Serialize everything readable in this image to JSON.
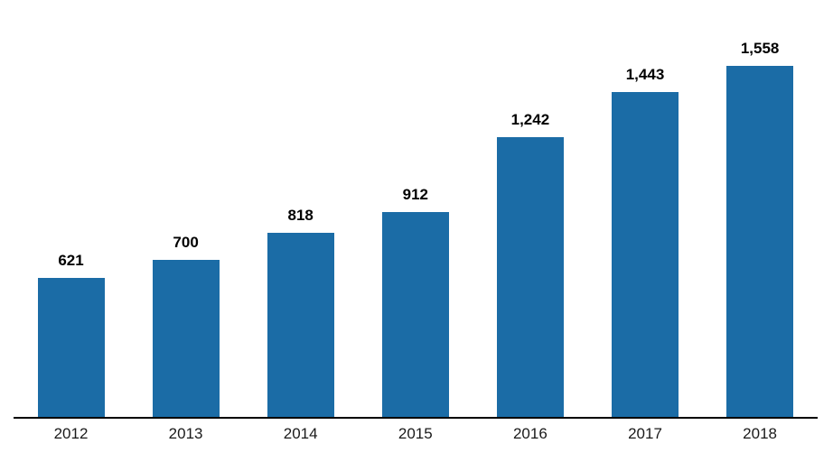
{
  "chart_data": {
    "type": "bar",
    "title": "",
    "xlabel": "",
    "ylabel": "",
    "categories": [
      "2012",
      "2013",
      "2014",
      "2015",
      "2016",
      "2017",
      "2018"
    ],
    "values": [
      621,
      700,
      818,
      912,
      1242,
      1443,
      1558
    ],
    "value_labels": [
      "621",
      "700",
      "818",
      "912",
      "1,242",
      "1,443",
      "1,558"
    ],
    "ylim": [
      0,
      1600
    ],
    "grid": false,
    "legend": false,
    "bar_color": "#1b6ca6",
    "axis_color": "#000000",
    "value_label_color": "#000000",
    "tick_label_color": "#1a1a1a"
  }
}
